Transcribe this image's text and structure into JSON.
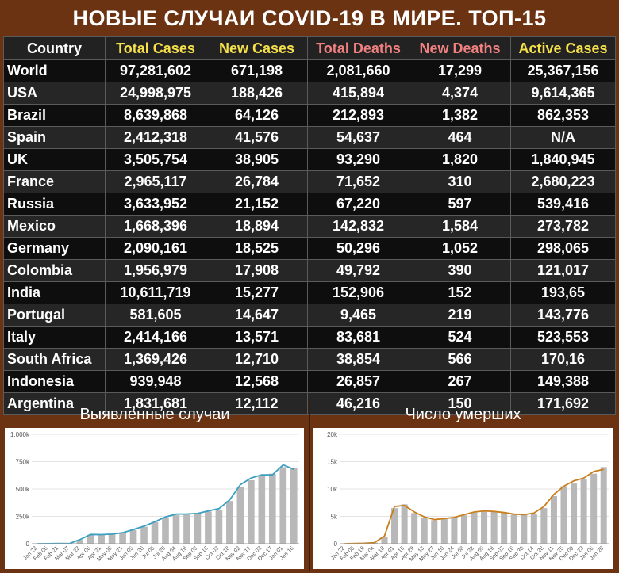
{
  "title": "НОВЫЕ СЛУЧАИ COVID-19 В МИРЕ. ТОП-15",
  "table": {
    "headers": [
      "Country",
      "Total Cases",
      "New Cases",
      "Total Deaths",
      "New Deaths",
      "Active Cases"
    ],
    "rows": [
      [
        "World",
        "97,281,602",
        "671,198",
        "2,081,660",
        "17,299",
        "25,367,156"
      ],
      [
        "USA",
        "24,998,975",
        "188,426",
        "415,894",
        "4,374",
        "9,614,365"
      ],
      [
        "Brazil",
        "8,639,868",
        "64,126",
        "212,893",
        "1,382",
        "862,353"
      ],
      [
        "Spain",
        "2,412,318",
        "41,576",
        "54,637",
        "464",
        "N/A"
      ],
      [
        "UK",
        "3,505,754",
        "38,905",
        "93,290",
        "1,820",
        "1,840,945"
      ],
      [
        "France",
        "2,965,117",
        "26,784",
        "71,652",
        "310",
        "2,680,223"
      ],
      [
        "Russia",
        "3,633,952",
        "21,152",
        "67,220",
        "597",
        "539,416"
      ],
      [
        "Mexico",
        "1,668,396",
        "18,894",
        "142,832",
        "1,584",
        "273,782"
      ],
      [
        "Germany",
        "2,090,161",
        "18,525",
        "50,296",
        "1,052",
        "298,065"
      ],
      [
        "Colombia",
        "1,956,979",
        "17,908",
        "49,792",
        "390",
        "121,017"
      ],
      [
        "India",
        "10,611,719",
        "15,277",
        "152,906",
        "152",
        "193,65"
      ],
      [
        "Portugal",
        "581,605",
        "14,647",
        "9,465",
        "219",
        "143,776"
      ],
      [
        "Italy",
        "2,414,166",
        "13,571",
        "83,681",
        "524",
        "523,553"
      ],
      [
        "South Africa",
        "1,369,426",
        "12,710",
        "38,854",
        "566",
        "170,16"
      ],
      [
        "Indonesia",
        "939,948",
        "12,568",
        "26,857",
        "267",
        "149,388"
      ],
      [
        "Argentina",
        "1,831,681",
        "12,112",
        "46,216",
        "150",
        "171,692"
      ]
    ]
  },
  "colors": {
    "background": "#6b3312",
    "header_white": "#ffffff",
    "header_yellow": "#f5e04a",
    "header_red": "#f08080",
    "cases_line": "#3a9fc0",
    "deaths_line": "#c87f1e",
    "bars": "#b8b8b8"
  },
  "chart_data": [
    {
      "type": "bar",
      "title": "Выявленные случаи",
      "xlabel": "",
      "ylabel": "",
      "ylim": [
        0,
        1000000
      ],
      "yticks": [
        "0",
        "250k",
        "500k",
        "750k",
        "1,000k"
      ],
      "ytick_values": [
        0,
        250000,
        500000,
        750000,
        1000000
      ],
      "grid": true,
      "categories": [
        "Jan 22",
        "Feb 06",
        "Feb 21",
        "Mar 07",
        "Mar 22",
        "Apr 06",
        "Apr 21",
        "May 06",
        "May 21",
        "Jun 05",
        "Jun 20",
        "Jul 05",
        "Jul 20",
        "Aug 04",
        "Aug 19",
        "Sep 03",
        "Sep 18",
        "Oct 03",
        "Oct 18",
        "Nov 02",
        "Nov 17",
        "Dec 02",
        "Dec 17",
        "Jan 01",
        "Jan 16"
      ],
      "series": [
        {
          "kind": "bar",
          "values": [
            0,
            1000,
            2000,
            1500,
            35000,
            80000,
            80000,
            85000,
            95000,
            125000,
            155000,
            200000,
            240000,
            260000,
            265000,
            270000,
            295000,
            310000,
            390000,
            520000,
            580000,
            620000,
            640000,
            700000,
            690000
          ]
        },
        {
          "kind": "line",
          "values": [
            0,
            1000,
            2000,
            1500,
            38000,
            85000,
            83000,
            88000,
            100000,
            130000,
            160000,
            200000,
            245000,
            270000,
            272000,
            276000,
            300000,
            320000,
            400000,
            540000,
            600000,
            630000,
            630000,
            720000,
            680000
          ]
        }
      ]
    },
    {
      "type": "bar",
      "title": "Число умерших",
      "xlabel": "",
      "ylabel": "",
      "ylim": [
        0,
        20000
      ],
      "yticks": [
        "0",
        "5k",
        "10k",
        "15k",
        "20k"
      ],
      "ytick_values": [
        0,
        5000,
        10000,
        15000,
        20000
      ],
      "grid": true,
      "categories": [
        "Jan 22",
        "Feb 05",
        "Feb 19",
        "Mar 04",
        "Mar 18",
        "Apr 01",
        "Apr 15",
        "Apr 29",
        "May 13",
        "May 27",
        "Jun 10",
        "Jun 24",
        "Jul 08",
        "Jul 22",
        "Aug 05",
        "Aug 19",
        "Sep 02",
        "Sep 16",
        "Sep 30",
        "Oct 14",
        "Oct 28",
        "Nov 11",
        "Nov 25",
        "Dec 09",
        "Dec 23",
        "Jan 06",
        "Jan 20"
      ],
      "series": [
        {
          "kind": "bar",
          "values": [
            0,
            50,
            100,
            200,
            1200,
            6500,
            7200,
            5600,
            4800,
            4300,
            4500,
            4700,
            5200,
            5700,
            6000,
            5900,
            5700,
            5300,
            5400,
            5500,
            6500,
            8700,
            10500,
            11000,
            11800,
            12800,
            14000
          ]
        },
        {
          "kind": "line",
          "values": [
            0,
            40,
            80,
            200,
            1400,
            6800,
            7000,
            5800,
            4900,
            4400,
            4600,
            4800,
            5300,
            5800,
            6000,
            5900,
            5700,
            5400,
            5300,
            5600,
            6800,
            9000,
            10500,
            11500,
            12000,
            13200,
            13600
          ]
        }
      ]
    }
  ]
}
